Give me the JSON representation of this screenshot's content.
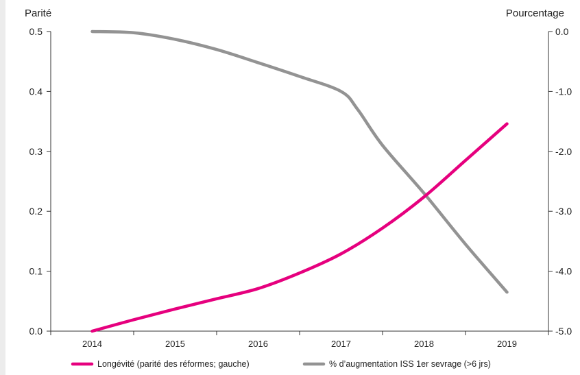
{
  "chart_data": {
    "type": "line",
    "title": "",
    "left_axis": {
      "label": "Parité",
      "range": [
        0.0,
        0.5
      ],
      "ticks": [
        0.0,
        0.1,
        0.2,
        0.3,
        0.4,
        0.5
      ],
      "tick_labels": [
        "0.0",
        "0.1",
        "0.2",
        "0.3",
        "0.4",
        "0.5"
      ]
    },
    "right_axis": {
      "label": "Pourcentage",
      "range": [
        -5.0,
        0.0
      ],
      "ticks": [
        -5.0,
        -4.0,
        -3.0,
        -2.0,
        -1.0,
        0.0
      ],
      "tick_labels": [
        "-5.0",
        "-4.0",
        "-3.0",
        "-2.0",
        "-1.0",
        "0.0"
      ]
    },
    "x_axis": {
      "categories": [
        "2014",
        "2015",
        "2016",
        "2017",
        "2018",
        "2019"
      ]
    },
    "grid": false,
    "legend_position": "bottom",
    "series": [
      {
        "name": "Longévité (parité des réformes; gauche)",
        "axis": "left",
        "color": "#e6007e",
        "x": [
          2014,
          2014.5,
          2015,
          2015.5,
          2016,
          2016.5,
          2017,
          2017.5,
          2018,
          2018.5,
          2019
        ],
        "values": [
          0.0,
          0.019,
          0.037,
          0.054,
          0.071,
          0.097,
          0.129,
          0.172,
          0.224,
          0.285,
          0.346
        ]
      },
      {
        "name": "% d’augmentation ISS 1er sevrage (>6 jrs)",
        "axis": "right",
        "color": "#939393",
        "x": [
          2014,
          2014.5,
          2015,
          2015.5,
          2016,
          2016.5,
          2017,
          2017.2,
          2017.5,
          2018,
          2018.5,
          2019
        ],
        "values": [
          0.0,
          -0.02,
          -0.13,
          -0.3,
          -0.52,
          -0.75,
          -1.0,
          -1.3,
          -1.9,
          -2.7,
          -3.55,
          -4.35
        ]
      }
    ]
  }
}
